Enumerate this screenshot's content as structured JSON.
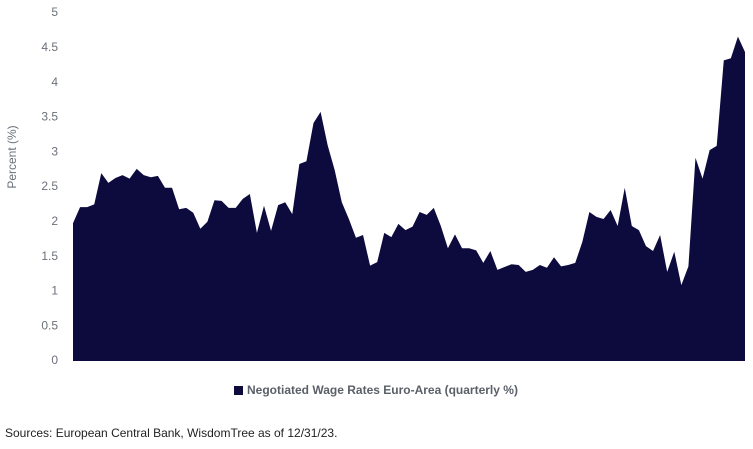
{
  "chart_data": {
    "type": "area",
    "ylabel": "Percent (%)",
    "series": [
      {
        "name": "Negotiated Wage Rates Euro-Area (quarterly %)",
        "color": "#0d0b3d",
        "values": [
          1.98,
          2.21,
          2.21,
          2.25,
          2.7,
          2.56,
          2.63,
          2.67,
          2.62,
          2.76,
          2.67,
          2.64,
          2.66,
          2.49,
          2.49,
          2.18,
          2.2,
          2.13,
          1.9,
          2.0,
          2.31,
          2.3,
          2.2,
          2.2,
          2.33,
          2.4,
          1.84,
          2.23,
          1.87,
          2.24,
          2.28,
          2.11,
          2.83,
          2.87,
          3.42,
          3.58,
          3.1,
          2.74,
          2.28,
          2.04,
          1.77,
          1.81,
          1.37,
          1.42,
          1.84,
          1.78,
          1.97,
          1.88,
          1.93,
          2.14,
          2.1,
          2.2,
          1.94,
          1.62,
          1.82,
          1.62,
          1.62,
          1.59,
          1.41,
          1.58,
          1.31,
          1.35,
          1.39,
          1.38,
          1.28,
          1.31,
          1.38,
          1.34,
          1.49,
          1.36,
          1.38,
          1.41,
          1.71,
          2.14,
          2.07,
          2.04,
          2.17,
          1.94,
          2.49,
          1.94,
          1.88,
          1.65,
          1.58,
          1.81,
          1.28,
          1.57,
          1.09,
          1.36,
          2.92,
          2.62,
          3.03,
          3.09,
          4.32,
          4.35,
          4.66,
          4.44
        ]
      }
    ],
    "ylim": [
      0,
      5
    ],
    "yticks": [
      0,
      0.5,
      1,
      1.5,
      2,
      2.5,
      3,
      3.5,
      4,
      4.5,
      5
    ],
    "grid": false,
    "source": "Sources: European Central Bank, WisdomTree as of 12/31/23."
  }
}
